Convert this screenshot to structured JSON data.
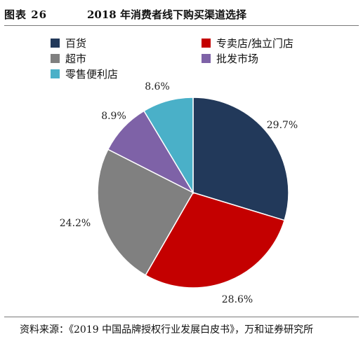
{
  "figure": {
    "label": "图表 26",
    "title": "2018 年消费者线下购买渠道选择"
  },
  "source_note": "资料来源：《2019 中国品牌授权行业发展白皮书》，万和证券研究所",
  "colors": {
    "百货": "#22395a",
    "专卖店/独立门店": "#c40000",
    "超市": "#808080",
    "批发市场": "#7e62a7",
    "零售便利店": "#4ab0c8"
  },
  "chart_data": {
    "type": "pie",
    "title": "",
    "start": "12 o'clock, clockwise",
    "legend_position": "top",
    "slices": [
      {
        "name": "百货",
        "value": 29.7,
        "label": "29.7%",
        "color": "#22395a"
      },
      {
        "name": "专卖店/独立门店",
        "value": 28.6,
        "label": "28.6%",
        "color": "#c40000"
      },
      {
        "name": "超市",
        "value": 24.2,
        "label": "24.2%",
        "color": "#808080"
      },
      {
        "name": "批发市场",
        "value": 8.9,
        "label": "8.9%",
        "color": "#7e62a7"
      },
      {
        "name": "零售便利店",
        "value": 8.6,
        "label": "8.6%",
        "color": "#4ab0c8"
      }
    ]
  }
}
